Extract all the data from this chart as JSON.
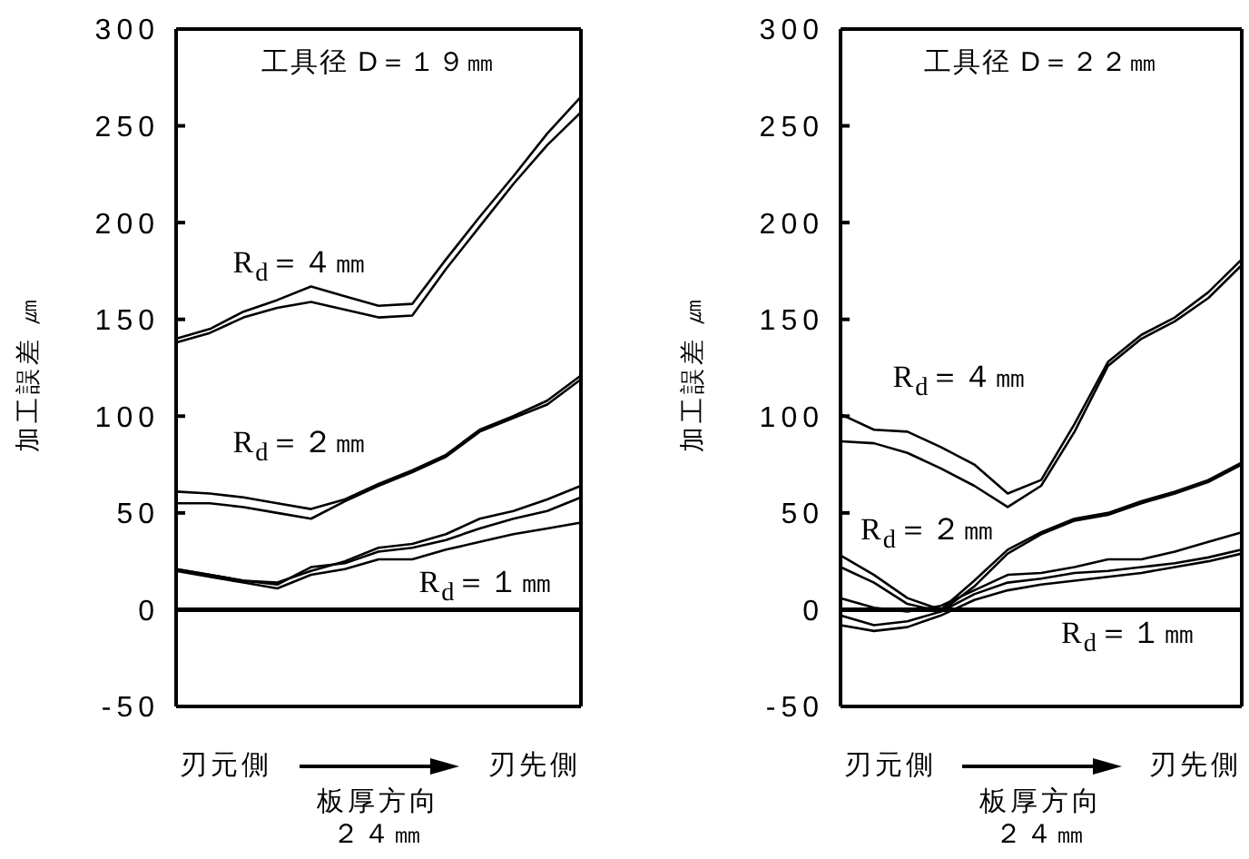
{
  "chart_data": [
    {
      "type": "line",
      "title": "工具径 D＝１９㎜",
      "xlabel": "板厚方向",
      "ylabel": "加工誤差 ㎛",
      "annotations": [
        "刃元側",
        "刃先側",
        "２４㎜"
      ],
      "categories": [
        null,
        null,
        null,
        null,
        null,
        null,
        null,
        null,
        null,
        null,
        null,
        null,
        null
      ],
      "series": [
        {
          "name": "R$_{d}$＝４㎜",
          "color": "#000000",
          "values": [
            140,
            145,
            154,
            160,
            167,
            162,
            157,
            158,
            181,
            203,
            224,
            246,
            265
          ]
        },
        {
          "color": "#000000",
          "values": [
            138,
            143,
            151,
            156,
            159,
            155,
            151,
            152,
            176,
            198,
            220,
            240,
            257
          ]
        },
        {
          "name": "R$_{d}$＝２㎜",
          "color": "#000000",
          "values": [
            61,
            60,
            58,
            55,
            52,
            57,
            65,
            72,
            80,
            93,
            100,
            108,
            121
          ]
        },
        {
          "color": "#000000",
          "values": [
            55,
            55,
            53,
            50,
            47,
            56,
            64,
            71,
            79,
            92,
            99,
            106,
            119
          ]
        },
        {
          "name": "R$_{d}$＝１㎜",
          "color": "#000000",
          "values": [
            21,
            18,
            15,
            14,
            20,
            25,
            32,
            34,
            39,
            47,
            51,
            57,
            64
          ]
        },
        {
          "color": "#000000",
          "values": [
            21,
            18,
            15,
            13,
            22,
            24,
            30,
            32,
            36,
            42,
            47,
            51,
            58
          ]
        },
        {
          "color": "#000000",
          "values": [
            20,
            17,
            14,
            11,
            18,
            21,
            26,
            26,
            31,
            35,
            39,
            42,
            45
          ]
        }
      ],
      "ylim": [
        -50,
        300
      ],
      "yticks": [
        -50,
        0,
        50,
        100,
        150,
        200,
        250,
        300
      ],
      "tick_labels": "y",
      "marker": "none",
      "line_style": "solid",
      "ref_lines": [
        {
          "axis": "y",
          "value": 0,
          "color": "#000000"
        }
      ]
    },
    {
      "type": "line",
      "title": "工具径 D＝２２㎜",
      "xlabel": "板厚方向",
      "ylabel": "加工誤差 ㎛",
      "annotations": [
        "刃元側",
        "刃先側",
        "２４㎜"
      ],
      "categories": [
        null,
        null,
        null,
        null,
        null,
        null,
        null,
        null,
        null,
        null,
        null,
        null,
        null
      ],
      "series": [
        {
          "name": "R$_{d}$＝４㎜",
          "color": "#000000",
          "values": [
            101,
            93,
            92,
            84,
            75,
            60,
            67,
            96,
            128,
            142,
            151,
            164,
            181
          ]
        },
        {
          "color": "#000000",
          "values": [
            87,
            86,
            81,
            73,
            64,
            53,
            64,
            92,
            126,
            140,
            149,
            161,
            178
          ]
        },
        {
          "name": "R$_{d}$＝２㎜",
          "color": "#000000",
          "values": [
            28,
            18,
            6,
            0,
            15,
            31,
            40,
            47,
            50,
            56,
            61,
            67,
            76
          ]
        },
        {
          "color": "#000000",
          "values": [
            22,
            14,
            3,
            -1,
            12,
            29,
            39,
            46,
            49,
            55,
            60,
            66,
            75
          ]
        },
        {
          "name": "R$_{d}$＝１㎜",
          "color": "#000000",
          "values": [
            6,
            1,
            -1,
            2,
            10,
            18,
            19,
            22,
            26,
            26,
            30,
            35,
            40
          ]
        },
        {
          "color": "#000000",
          "values": [
            -3,
            -8,
            -6,
            -1,
            8,
            14,
            16,
            19,
            20,
            22,
            24,
            27,
            31
          ]
        },
        {
          "color": "#000000",
          "values": [
            -8,
            -11,
            -9,
            -3,
            5,
            10,
            13,
            15,
            17,
            19,
            22,
            25,
            29
          ]
        }
      ],
      "ylim": [
        -50,
        300
      ],
      "yticks": [
        -50,
        0,
        50,
        100,
        150,
        200,
        250,
        300
      ],
      "tick_labels": "y",
      "marker": "none",
      "line_style": "solid",
      "ref_lines": [
        {
          "axis": "y",
          "value": 0,
          "color": "#000000"
        }
      ]
    }
  ]
}
